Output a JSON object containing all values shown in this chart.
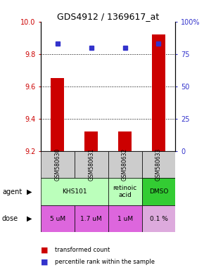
{
  "title": "GDS4912 / 1369617_at",
  "samples": [
    "GSM580630",
    "GSM580631",
    "GSM580632",
    "GSM580633"
  ],
  "bar_values": [
    9.65,
    9.32,
    9.32,
    9.92
  ],
  "dot_values": [
    83,
    80,
    80,
    83
  ],
  "ylim_left": [
    9.2,
    10.0
  ],
  "ylim_right": [
    0,
    100
  ],
  "yticks_left": [
    9.2,
    9.4,
    9.6,
    9.8,
    10.0
  ],
  "yticks_right": [
    0,
    25,
    50,
    75,
    100
  ],
  "ytick_labels_right": [
    "0",
    "25",
    "50",
    "75",
    "100%"
  ],
  "bar_color": "#cc0000",
  "dot_color": "#3333cc",
  "bar_bottom": 9.2,
  "agent_groups": [
    {
      "label": "KHS101",
      "cols": [
        0,
        1
      ],
      "color": "#bbffbb"
    },
    {
      "label": "retinoic\nacid",
      "cols": [
        2,
        2
      ],
      "color": "#bbffbb"
    },
    {
      "label": "DMSO",
      "cols": [
        3,
        3
      ],
      "color": "#33cc33"
    }
  ],
  "dose_labels": [
    "5 uM",
    "1.7 uM",
    "1 uM",
    "0.1 %"
  ],
  "dose_colors": [
    "#dd66dd",
    "#dd66dd",
    "#dd66dd",
    "#ddaadd"
  ],
  "sample_bg_color": "#cccccc",
  "legend_bar_label": "transformed count",
  "legend_dot_label": "percentile rank within the sample",
  "grid_lines": [
    9.4,
    9.6,
    9.8
  ],
  "dot_size": 4
}
